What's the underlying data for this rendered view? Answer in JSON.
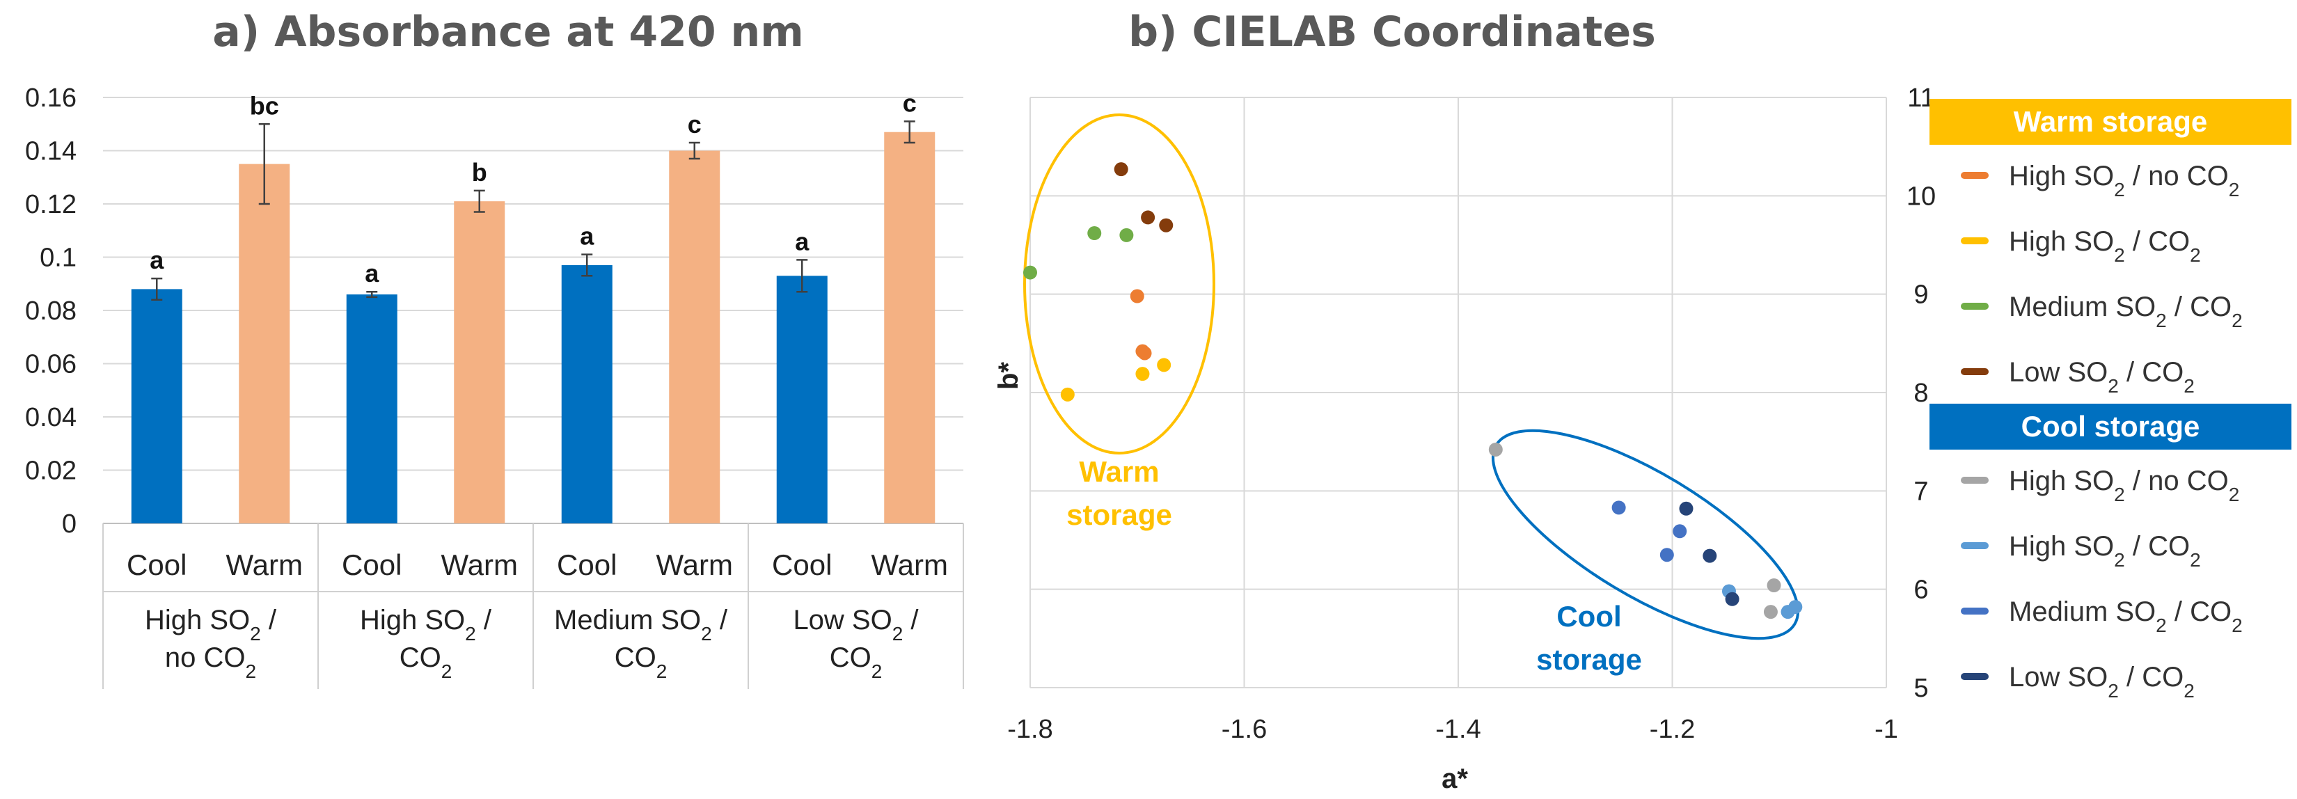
{
  "chart_data": [
    {
      "type": "bar",
      "title": "a) Absorbance at 420 nm",
      "ylim": [
        0,
        0.16
      ],
      "yticks": [
        "0",
        "0.02",
        "0.04",
        "0.06",
        "0.08",
        "0.1",
        "0.12",
        "0.14",
        "0.16"
      ],
      "groups": [
        {
          "label_lines": [
            [
              "High SO",
              "2",
              " /"
            ],
            [
              "no CO",
              "2",
              ""
            ]
          ]
        },
        {
          "label_lines": [
            [
              "High SO",
              "2",
              " /"
            ],
            [
              "CO",
              "2",
              ""
            ]
          ]
        },
        {
          "label_lines": [
            [
              "Medium SO",
              "2",
              " /"
            ],
            [
              "CO",
              "2",
              ""
            ]
          ]
        },
        {
          "label_lines": [
            [
              "Low SO",
              "2",
              " /"
            ],
            [
              "CO",
              "2",
              ""
            ]
          ]
        }
      ],
      "bars": [
        {
          "category": "Cool",
          "group": 0,
          "value": 0.088,
          "error": 0.004,
          "label": "a",
          "color": "#0070C0"
        },
        {
          "category": "Warm",
          "group": 0,
          "value": 0.135,
          "error": 0.015,
          "label": "bc",
          "color": "#F4B183"
        },
        {
          "category": "Cool",
          "group": 1,
          "value": 0.086,
          "error": 0.001,
          "label": "a",
          "color": "#0070C0"
        },
        {
          "category": "Warm",
          "group": 1,
          "value": 0.121,
          "error": 0.004,
          "label": "b",
          "color": "#F4B183"
        },
        {
          "category": "Cool",
          "group": 2,
          "value": 0.097,
          "error": 0.004,
          "label": "a",
          "color": "#0070C0"
        },
        {
          "category": "Warm",
          "group": 2,
          "value": 0.14,
          "error": 0.003,
          "label": "c",
          "color": "#F4B183"
        },
        {
          "category": "Cool",
          "group": 3,
          "value": 0.093,
          "error": 0.006,
          "label": "a",
          "color": "#0070C0"
        },
        {
          "category": "Warm",
          "group": 3,
          "value": 0.147,
          "error": 0.004,
          "label": "c",
          "color": "#F4B183"
        }
      ]
    },
    {
      "type": "scatter",
      "title": "b) CIELAB Coordinates",
      "xlabel": "a*",
      "ylabel": "b*",
      "xlim": [
        -1.8,
        -1.0
      ],
      "ylim": [
        5,
        11
      ],
      "xticks": [
        -1.8,
        -1.6,
        -1.4,
        -1.2,
        -1
      ],
      "xtick_labels": [
        "-1.8",
        "-1.6",
        "-1.4",
        "-1.2",
        "-1"
      ],
      "yticks": [
        5,
        6,
        7,
        8,
        9,
        10,
        11
      ],
      "ytick_labels": [
        "5",
        "6",
        "7",
        "8",
        "9",
        "10",
        "11"
      ],
      "series": [
        {
          "name": [
            "High SO",
            "2",
            " / no CO",
            "2"
          ],
          "storage": "Warm storage",
          "color": "#ED7D31",
          "points": [
            [
              -1.7,
              8.98
            ],
            [
              -1.695,
              8.42
            ],
            [
              -1.693,
              8.4
            ]
          ]
        },
        {
          "name": [
            "High SO",
            "2",
            " / CO",
            "2"
          ],
          "storage": "Warm storage",
          "color": "#FFC000",
          "points": [
            [
              -1.765,
              7.98
            ],
            [
              -1.695,
              8.19
            ],
            [
              -1.675,
              8.28
            ]
          ]
        },
        {
          "name": [
            "Medium SO",
            "2",
            " / CO",
            "2"
          ],
          "storage": "Warm storage",
          "color": "#70AD47",
          "points": [
            [
              -1.8,
              9.22
            ],
            [
              -1.74,
              9.62
            ],
            [
              -1.71,
              9.6
            ]
          ]
        },
        {
          "name": [
            "Low SO",
            "2",
            " / CO",
            "2"
          ],
          "storage": "Warm storage",
          "color": "#843C0C",
          "points": [
            [
              -1.715,
              10.27
            ],
            [
              -1.69,
              9.78
            ],
            [
              -1.673,
              9.7
            ]
          ]
        },
        {
          "name": [
            "High SO",
            "2",
            " / no CO",
            "2"
          ],
          "storage": "Cool storage",
          "color": "#A5A5A5",
          "points": [
            [
              -1.365,
              7.42
            ],
            [
              -1.105,
              6.04
            ],
            [
              -1.108,
              5.77
            ]
          ]
        },
        {
          "name": [
            "High SO",
            "2",
            " / CO",
            "2"
          ],
          "storage": "Cool storage",
          "color": "#5B9BD5",
          "points": [
            [
              -1.147,
              5.98
            ],
            [
              -1.092,
              5.77
            ],
            [
              -1.085,
              5.82
            ]
          ]
        },
        {
          "name": [
            "Medium SO",
            "2",
            " / CO",
            "2"
          ],
          "storage": "Cool storage",
          "color": "#4472C4",
          "points": [
            [
              -1.25,
              6.83
            ],
            [
              -1.205,
              6.35
            ],
            [
              -1.193,
              6.59
            ]
          ]
        },
        {
          "name": [
            "Low SO",
            "2",
            " / CO",
            "2"
          ],
          "storage": "Cool storage",
          "color": "#264478",
          "points": [
            [
              -1.187,
              6.82
            ],
            [
              -1.165,
              6.34
            ],
            [
              -1.144,
              5.9
            ]
          ]
        }
      ],
      "annotations": [
        {
          "lines": [
            "Warm",
            "storage"
          ],
          "color": "#FFC000"
        },
        {
          "lines": [
            "Cool",
            "storage"
          ],
          "color": "#0070C0"
        }
      ],
      "legend": {
        "placement": "right",
        "sections": [
          {
            "header": "Warm storage",
            "color": "#FFC000",
            "series_indices": [
              0,
              1,
              2,
              3
            ]
          },
          {
            "header": "Cool storage",
            "color": "#0070C0",
            "series_indices": [
              4,
              5,
              6,
              7
            ]
          }
        ]
      }
    }
  ]
}
